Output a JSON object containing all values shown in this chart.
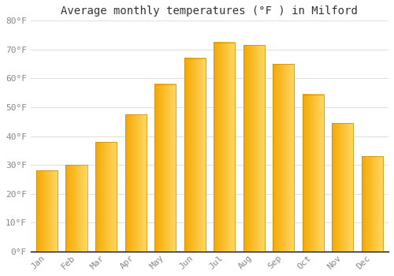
{
  "title": "Average monthly temperatures (°F ) in Milford",
  "months": [
    "Jan",
    "Feb",
    "Mar",
    "Apr",
    "May",
    "Jun",
    "Jul",
    "Aug",
    "Sep",
    "Oct",
    "Nov",
    "Dec"
  ],
  "values": [
    28,
    30,
    38,
    47.5,
    58,
    67,
    72.5,
    71.5,
    65,
    54.5,
    44.5,
    33
  ],
  "bar_color_left": "#F5A800",
  "bar_color_right": "#FFD966",
  "background_color": "#FFFFFF",
  "grid_color": "#E0E0E0",
  "ylim": [
    0,
    80
  ],
  "yticks": [
    0,
    10,
    20,
    30,
    40,
    50,
    60,
    70,
    80
  ],
  "ytick_labels": [
    "0°F",
    "10°F",
    "20°F",
    "30°F",
    "40°F",
    "50°F",
    "60°F",
    "70°F",
    "80°F"
  ],
  "title_fontsize": 10,
  "tick_fontsize": 8,
  "title_color": "#333333",
  "tick_color": "#888888",
  "axis_color": "#000000"
}
